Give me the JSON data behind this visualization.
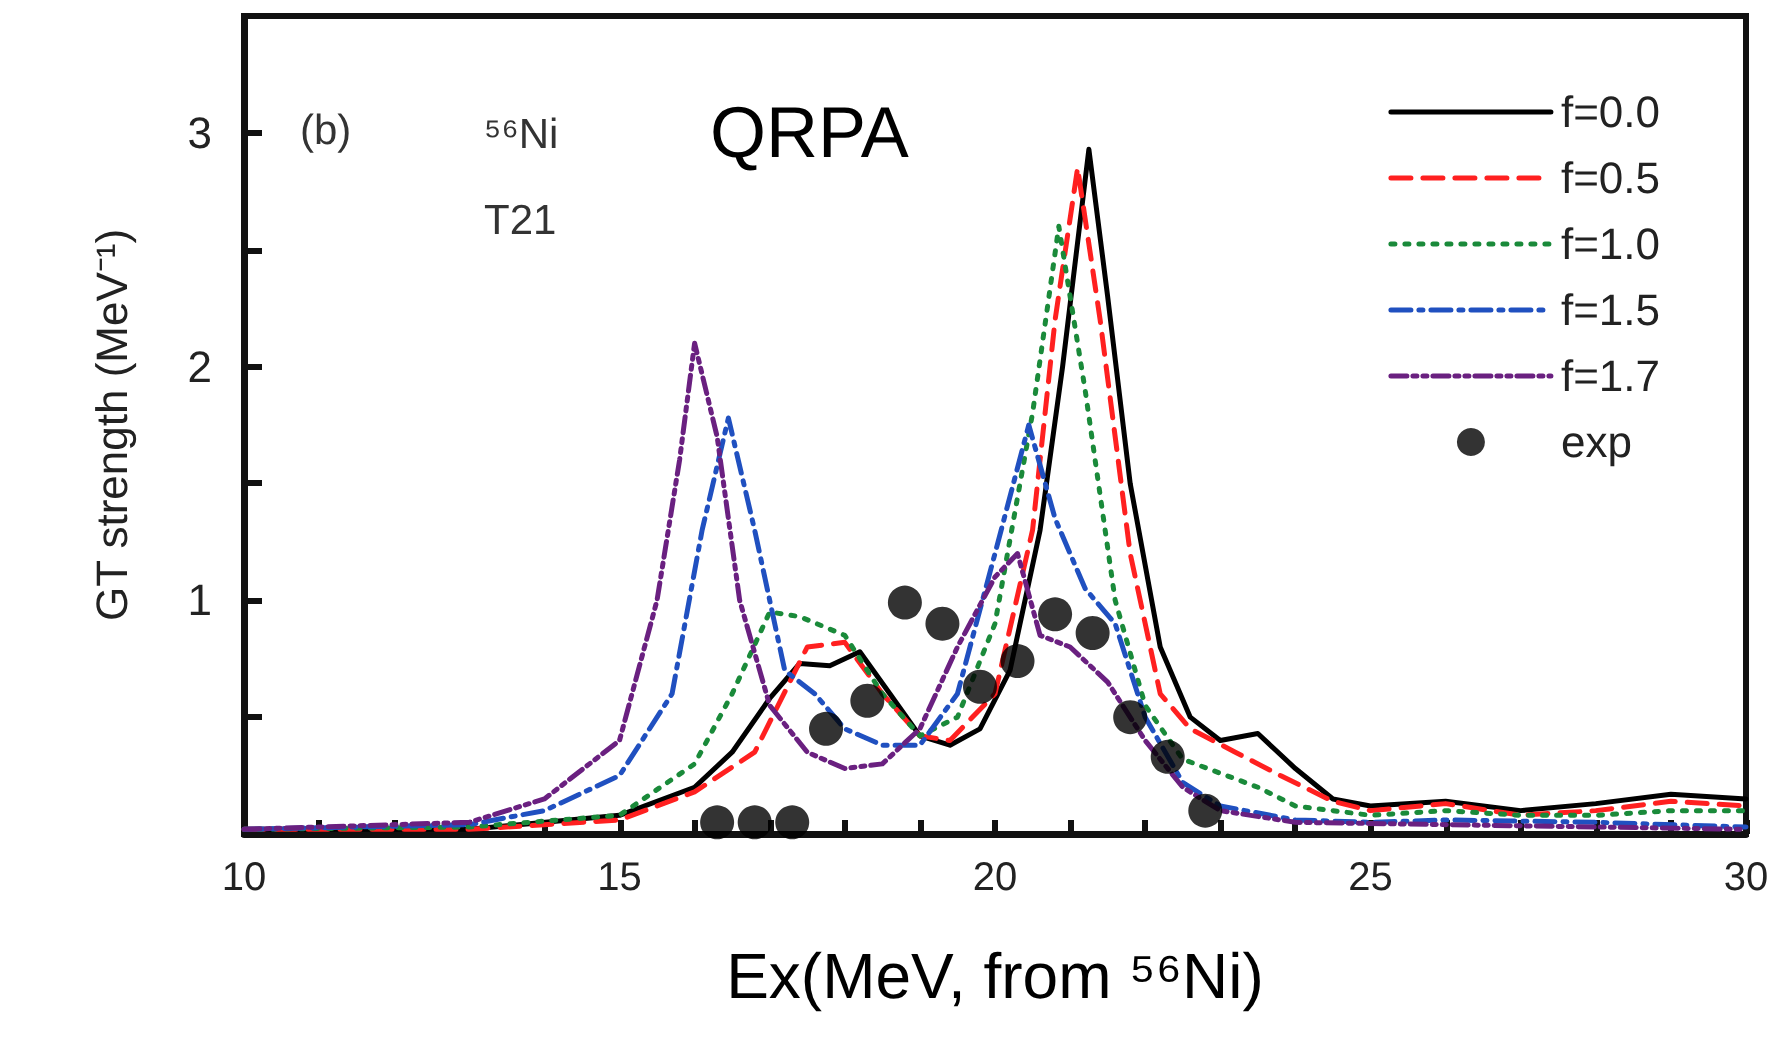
{
  "chart_data": {
    "type": "line",
    "xlabel": "Ex(MeV, from ⁵⁶Ni)",
    "ylabel": "GT strength (MeV⁻¹)",
    "annotations": [
      "(b)",
      "⁵⁶Ni",
      "T21",
      "QRPA"
    ],
    "xlim": [
      10,
      30
    ],
    "ylim": [
      0,
      3.5
    ],
    "xticks": [
      10,
      {
        "value": 11,
        "label": null
      },
      {
        "value": 12,
        "label": null
      },
      {
        "value": 13,
        "label": null
      },
      {
        "value": 14,
        "label": null
      },
      15,
      {
        "value": 16,
        "label": null
      },
      {
        "value": 17,
        "label": null
      },
      {
        "value": 18,
        "label": null
      },
      {
        "value": 19,
        "label": null
      },
      20,
      {
        "value": 21,
        "label": null
      },
      {
        "value": 22,
        "label": null
      },
      {
        "value": 23,
        "label": null
      },
      {
        "value": 24,
        "label": null
      },
      25,
      {
        "value": 26,
        "label": null
      },
      {
        "value": 27,
        "label": null
      },
      {
        "value": 28,
        "label": null
      },
      {
        "value": 29,
        "label": null
      },
      30
    ],
    "yticks": [
      {
        "value": 0,
        "label": null
      },
      {
        "value": 0.5,
        "label": null
      },
      1,
      {
        "value": 1.5,
        "label": null
      },
      2,
      {
        "value": 2.5,
        "label": null
      },
      3
    ],
    "grid": false,
    "legend": "top right",
    "marker": "none",
    "series": [
      {
        "name": "f=0.0",
        "color": "#000000",
        "line_style": "solid",
        "x": [
          10,
          13,
          15,
          16,
          16.5,
          17,
          17.4,
          17.8,
          18.2,
          18.6,
          19,
          19.4,
          19.8,
          20.2,
          20.6,
          20.9,
          21.25,
          21.5,
          21.8,
          22.2,
          22.6,
          23,
          23.5,
          24,
          24.5,
          25,
          26,
          27,
          28,
          29,
          30
        ],
        "values": [
          0.02,
          0.02,
          0.08,
          0.2,
          0.35,
          0.58,
          0.73,
          0.72,
          0.78,
          0.6,
          0.42,
          0.38,
          0.45,
          0.7,
          1.3,
          2.0,
          2.93,
          2.3,
          1.5,
          0.8,
          0.5,
          0.4,
          0.43,
          0.28,
          0.15,
          0.12,
          0.14,
          0.1,
          0.13,
          0.17,
          0.15
        ]
      },
      {
        "name": "f=0.5",
        "color": "#ff2020",
        "line_style": "dashed",
        "x": [
          10,
          13,
          15,
          16,
          16.8,
          17.5,
          18,
          18.5,
          19,
          19.4,
          20,
          20.5,
          20.8,
          21.1,
          21.4,
          21.8,
          22.2,
          22.6,
          23.2,
          23.8,
          24.5,
          25,
          26,
          27,
          28,
          29,
          30
        ],
        "values": [
          0.02,
          0.02,
          0.06,
          0.18,
          0.35,
          0.8,
          0.82,
          0.6,
          0.42,
          0.4,
          0.6,
          1.3,
          2.2,
          2.85,
          2.2,
          1.2,
          0.6,
          0.45,
          0.35,
          0.25,
          0.14,
          0.1,
          0.13,
          0.08,
          0.1,
          0.14,
          0.12
        ]
      },
      {
        "name": "f=1.0",
        "color": "#1a8a3a",
        "line_style": "dotted",
        "x": [
          10,
          13,
          15,
          16,
          16.5,
          17,
          17.4,
          18,
          18.5,
          19,
          19.5,
          20,
          20.5,
          20.85,
          21.2,
          21.6,
          22,
          22.5,
          23,
          23.5,
          24,
          25,
          26,
          27,
          28,
          29,
          30
        ],
        "values": [
          0.02,
          0.03,
          0.08,
          0.3,
          0.6,
          0.95,
          0.93,
          0.85,
          0.6,
          0.42,
          0.5,
          0.9,
          1.8,
          2.6,
          1.9,
          1.0,
          0.55,
          0.32,
          0.26,
          0.2,
          0.12,
          0.08,
          0.1,
          0.08,
          0.08,
          0.1,
          0.1
        ]
      },
      {
        "name": "f=1.5",
        "color": "#2050c0",
        "line_style": "dashdot",
        "x": [
          10,
          13,
          14,
          15,
          15.7,
          16.1,
          16.45,
          16.8,
          17.2,
          17.6,
          18,
          18.5,
          19,
          19.5,
          20,
          20.45,
          20.8,
          21.2,
          21.6,
          22,
          22.5,
          23,
          24,
          25,
          26,
          28,
          30
        ],
        "values": [
          0.02,
          0.04,
          0.1,
          0.25,
          0.6,
          1.3,
          1.78,
          1.3,
          0.7,
          0.6,
          0.45,
          0.38,
          0.38,
          0.6,
          1.2,
          1.75,
          1.35,
          1.05,
          0.9,
          0.5,
          0.22,
          0.12,
          0.06,
          0.05,
          0.06,
          0.05,
          0.03
        ]
      },
      {
        "name": "f=1.7",
        "color": "#6a2080",
        "line_style": "dashdotdot",
        "x": [
          10,
          13,
          14,
          15,
          15.5,
          15.8,
          16,
          16.3,
          16.6,
          17,
          17.5,
          18,
          18.5,
          19,
          19.5,
          20,
          20.3,
          20.6,
          21,
          21.5,
          22,
          22.5,
          23,
          24,
          26,
          30
        ],
        "values": [
          0.02,
          0.05,
          0.15,
          0.4,
          1.0,
          1.6,
          2.1,
          1.7,
          1.0,
          0.55,
          0.35,
          0.28,
          0.3,
          0.45,
          0.8,
          1.1,
          1.2,
          0.85,
          0.8,
          0.65,
          0.4,
          0.2,
          0.1,
          0.05,
          0.04,
          0.02
        ]
      },
      {
        "name": "exp",
        "type": "scatter",
        "marker": "circle",
        "color": "#000000",
        "x": [
          16.3,
          16.8,
          17.3,
          17.75,
          18.3,
          18.8,
          19.3,
          19.8,
          20.3,
          20.8,
          21.3,
          21.8,
          22.3,
          22.8
        ],
        "values": [
          0.05,
          0.05,
          0.05,
          0.45,
          0.57,
          0.99,
          0.9,
          0.63,
          0.74,
          0.94,
          0.86,
          0.5,
          0.33,
          0.1
        ]
      }
    ]
  }
}
